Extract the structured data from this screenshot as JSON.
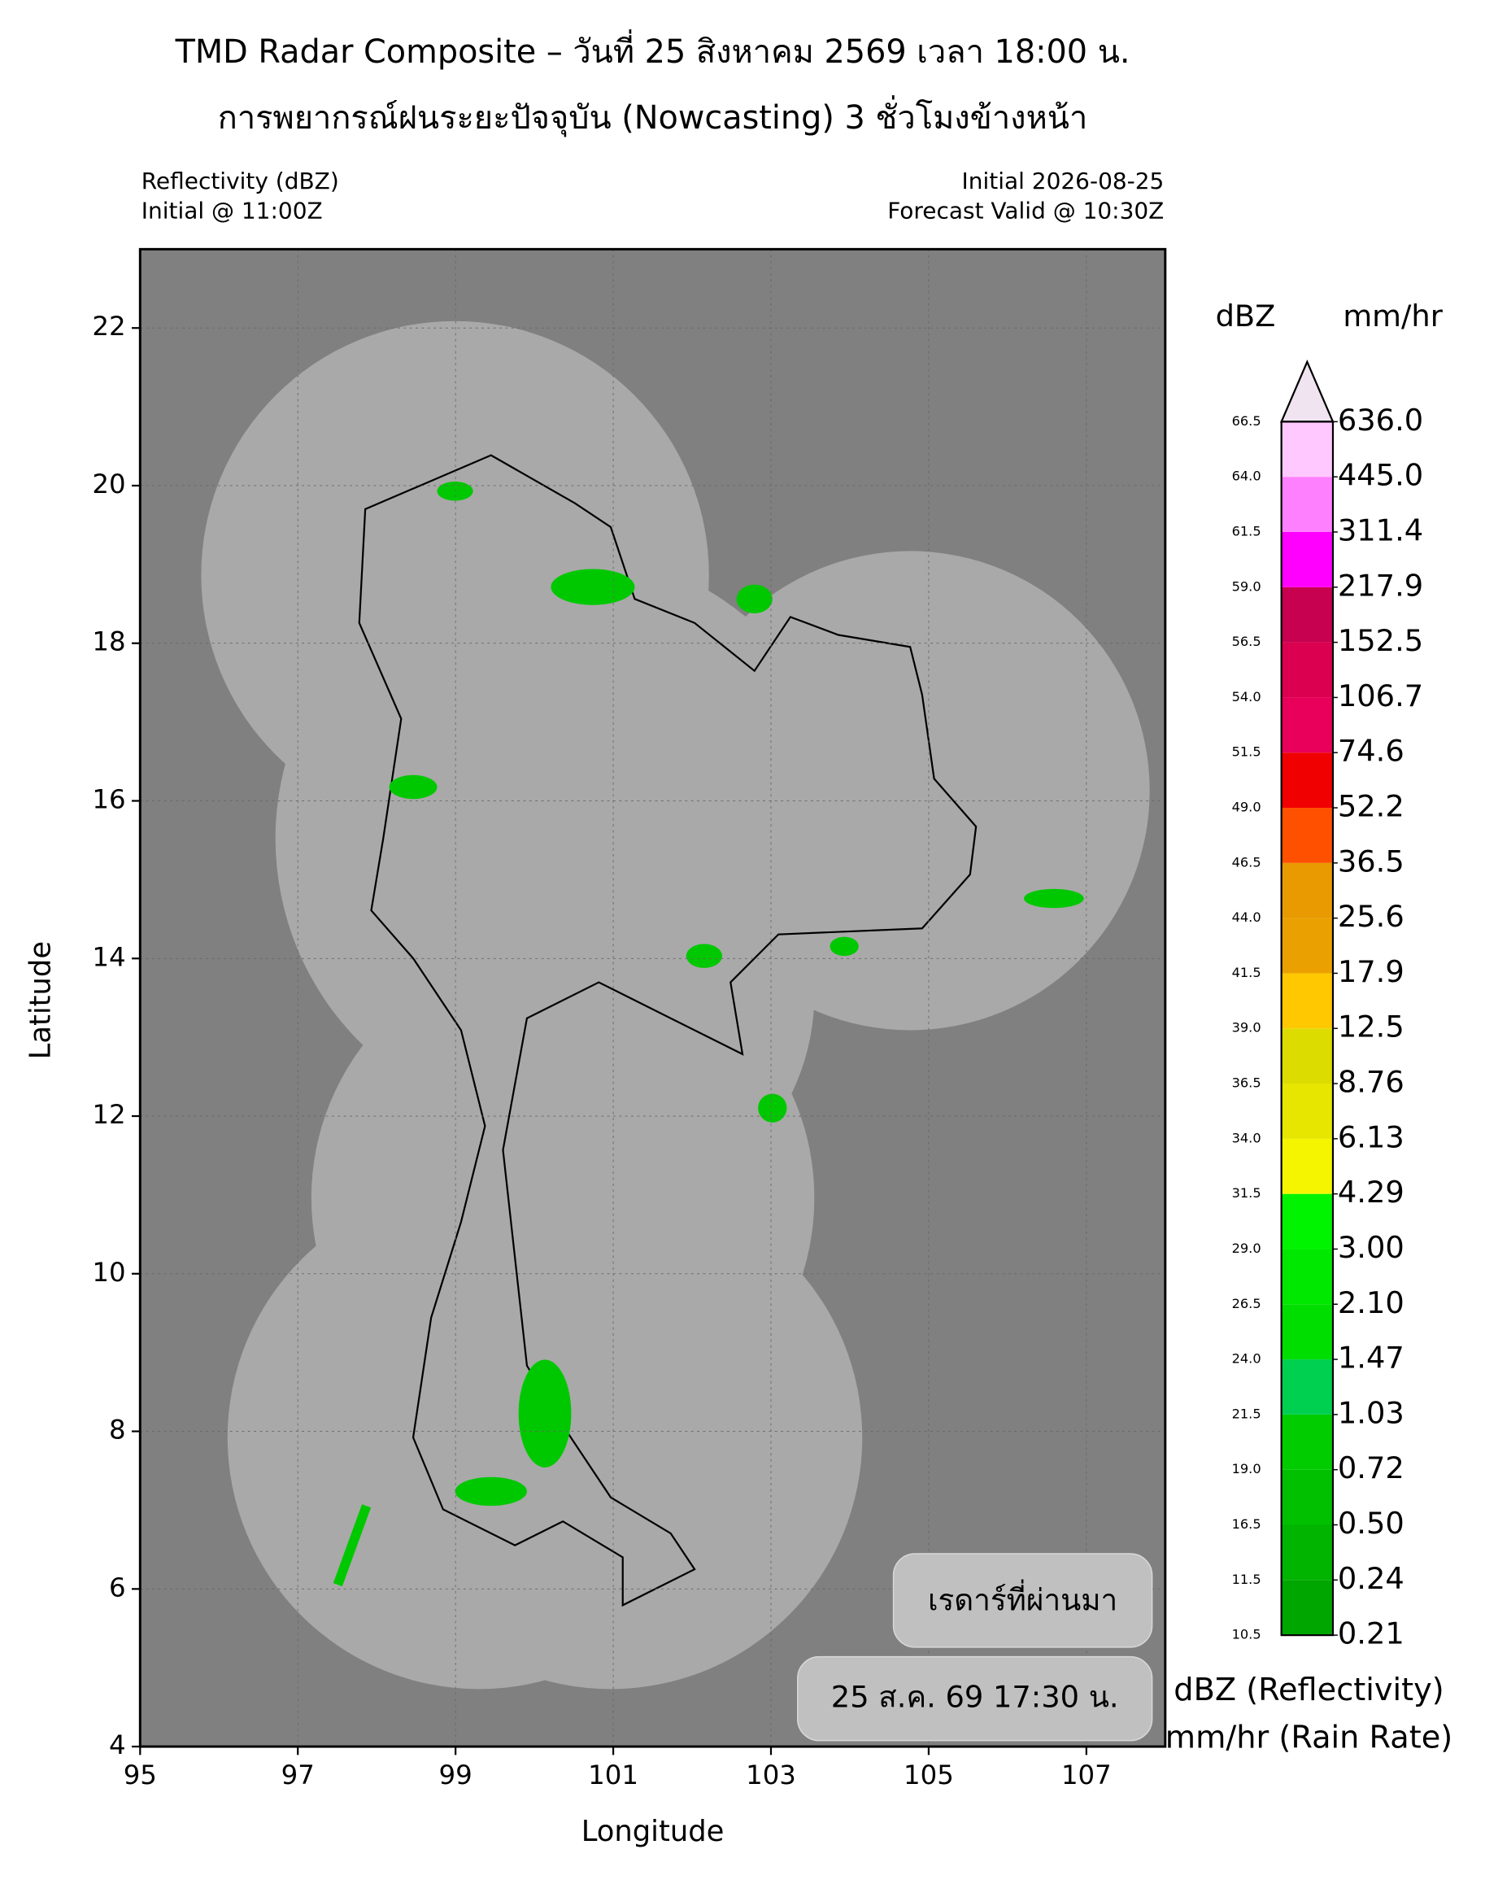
{
  "title": "TMD Radar Composite – วันที่ 25 สิงหาคม 2569 เวลา 18:00 น.",
  "subtitle": "การพยากรณ์ฝนระยะปัจจุบัน (Nowcasting) 3 ชั่วโมงข้างหน้า",
  "left_info": [
    "Reflectivity (dBZ)",
    "Initial @ 11:00Z"
  ],
  "right_info": [
    "Initial 2026-08-25",
    "Forecast Valid @ 10:30Z"
  ],
  "map": {
    "xlabel": "Longitude",
    "ylabel": "Latitude",
    "xlim": [
      95,
      108
    ],
    "ylim": [
      4,
      23
    ],
    "xticks": [
      95,
      97,
      99,
      101,
      103,
      105,
      107
    ],
    "yticks": [
      4,
      6,
      8,
      10,
      12,
      14,
      16,
      18,
      20,
      22
    ],
    "grid": true
  },
  "colorbar": {
    "left_header": "dBZ",
    "right_header": "mm/hr",
    "dbz": [
      10.5,
      11.5,
      16.5,
      {
        "value": 19,
        "label": "19.0"
      },
      21.5,
      {
        "value": 24,
        "label": "24.0"
      },
      26.5,
      {
        "value": 29,
        "label": "29.0"
      },
      31.5,
      {
        "value": 34,
        "label": "34.0"
      },
      36.5,
      {
        "value": 39,
        "label": "39.0"
      },
      41.5,
      {
        "value": 44,
        "label": "44.0"
      },
      46.5,
      {
        "value": 49,
        "label": "49.0"
      },
      51.5,
      {
        "value": 54,
        "label": "54.0"
      },
      56.5,
      {
        "value": 59,
        "label": "59.0"
      },
      61.5,
      {
        "value": 64,
        "label": "64.0"
      },
      66.5
    ],
    "rain_rate": [
      0.21,
      0.24,
      {
        "value": 0.5,
        "label": "0.50"
      },
      0.72,
      1.03,
      1.47,
      {
        "value": 2.1,
        "label": "2.10"
      },
      {
        "value": 3,
        "label": "3.00"
      },
      4.29,
      6.13,
      8.76,
      12.5,
      17.9,
      25.6,
      36.5,
      52.2,
      74.6,
      106.7,
      152.5,
      217.9,
      311.4,
      {
        "value": 445,
        "label": "445.0"
      },
      {
        "value": 636,
        "label": "636.0"
      }
    ],
    "colors": [
      "#00a600",
      "#00b400",
      "#00c000",
      "#00cc00",
      "#00d050",
      "#00de00",
      "#00e800",
      "#00f400",
      "#f5f500",
      "#e6e600",
      "#dcdc00",
      "#ffc800",
      "#eaa000",
      "#e89a00",
      "#ff5000",
      "#f00000",
      "#e8005a",
      "#dc0050",
      "#c80050",
      "#ff00ff",
      "#ff80ff",
      "#ffc8ff"
    ],
    "extend_color": "#f0e4f0",
    "caption": [
      "dBZ (Reflectivity)",
      "mm/hr (Rain Rate)"
    ]
  },
  "legend": {
    "label": "เรดาร์ที่ผ่านมา",
    "time": "25 ส.ค. 69 17:30 น."
  }
}
